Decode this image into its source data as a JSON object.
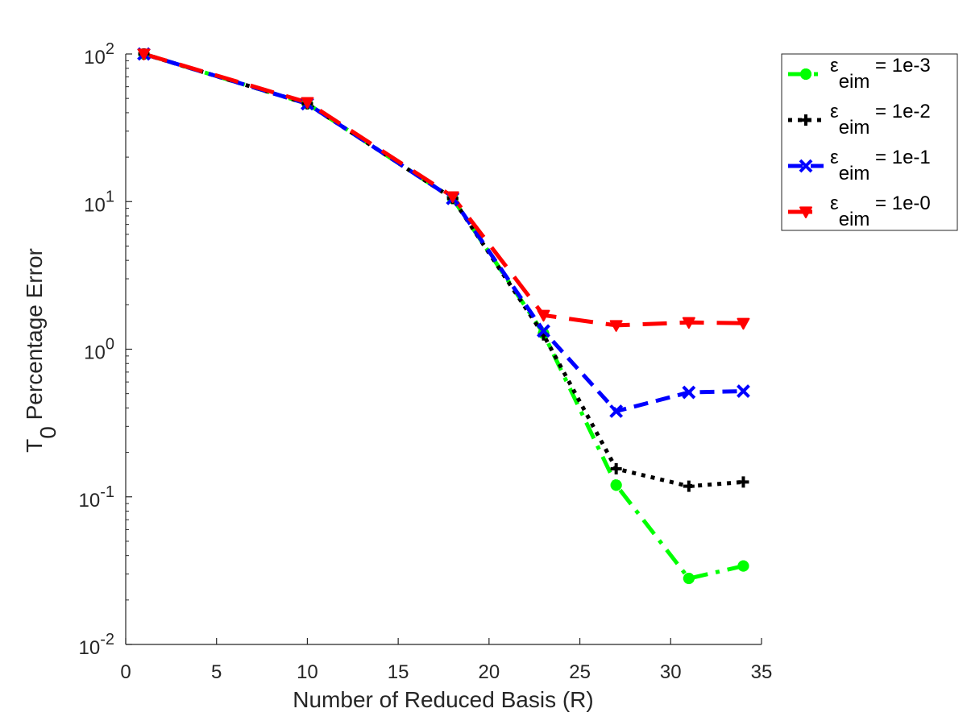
{
  "chart_data": {
    "type": "line",
    "xlabel": "Number of Reduced Basis (R)",
    "ylabel": {
      "main": "T",
      "sub": "0",
      "rest": " Percentage Error"
    },
    "x_ticks": [
      "0",
      "5",
      "10",
      "15",
      "20",
      "25",
      "30",
      "35"
    ],
    "y_ticks": [
      {
        "base": "10",
        "exp": "-2",
        "value": 0.01
      },
      {
        "base": "10",
        "exp": "-1",
        "value": 0.1
      },
      {
        "base": "10",
        "exp": "0",
        "value": 1
      },
      {
        "base": "10",
        "exp": "1",
        "value": 10
      },
      {
        "base": "10",
        "exp": "2",
        "value": 100
      }
    ],
    "xlim": [
      0,
      35
    ],
    "ylim": [
      0.01,
      100
    ],
    "yscale": "log",
    "grid": false,
    "legend_position": "outside-top-right",
    "x": [
      1,
      10,
      18,
      23,
      27,
      31,
      34
    ],
    "series": [
      {
        "name": "= 1e-3",
        "symbol": "ε",
        "subscript": "eim",
        "color": "#00ff00",
        "line_style": "dashdot",
        "marker": "asterisk",
        "values": [
          100,
          46,
          10.5,
          1.28,
          0.12,
          0.028,
          0.034
        ]
      },
      {
        "name": "= 1e-2",
        "symbol": "ε",
        "subscript": "eim",
        "color": "#000000",
        "line_style": "dotted",
        "marker": "plus",
        "values": [
          100,
          46,
          10.5,
          1.25,
          0.155,
          0.118,
          0.126
        ]
      },
      {
        "name": "= 1e-1",
        "symbol": "ε",
        "subscript": "eim",
        "color": "#0000ff",
        "line_style": "dashed",
        "marker": "x",
        "values": [
          100,
          46,
          10.5,
          1.33,
          0.38,
          0.51,
          0.52
        ]
      },
      {
        "name": "= 1e-0",
        "symbol": "ε",
        "subscript": "eim",
        "color": "#ff0000",
        "line_style": "longdash",
        "marker": "triangle-down",
        "values": [
          100,
          47,
          10.8,
          1.7,
          1.45,
          1.52,
          1.5
        ]
      }
    ]
  }
}
